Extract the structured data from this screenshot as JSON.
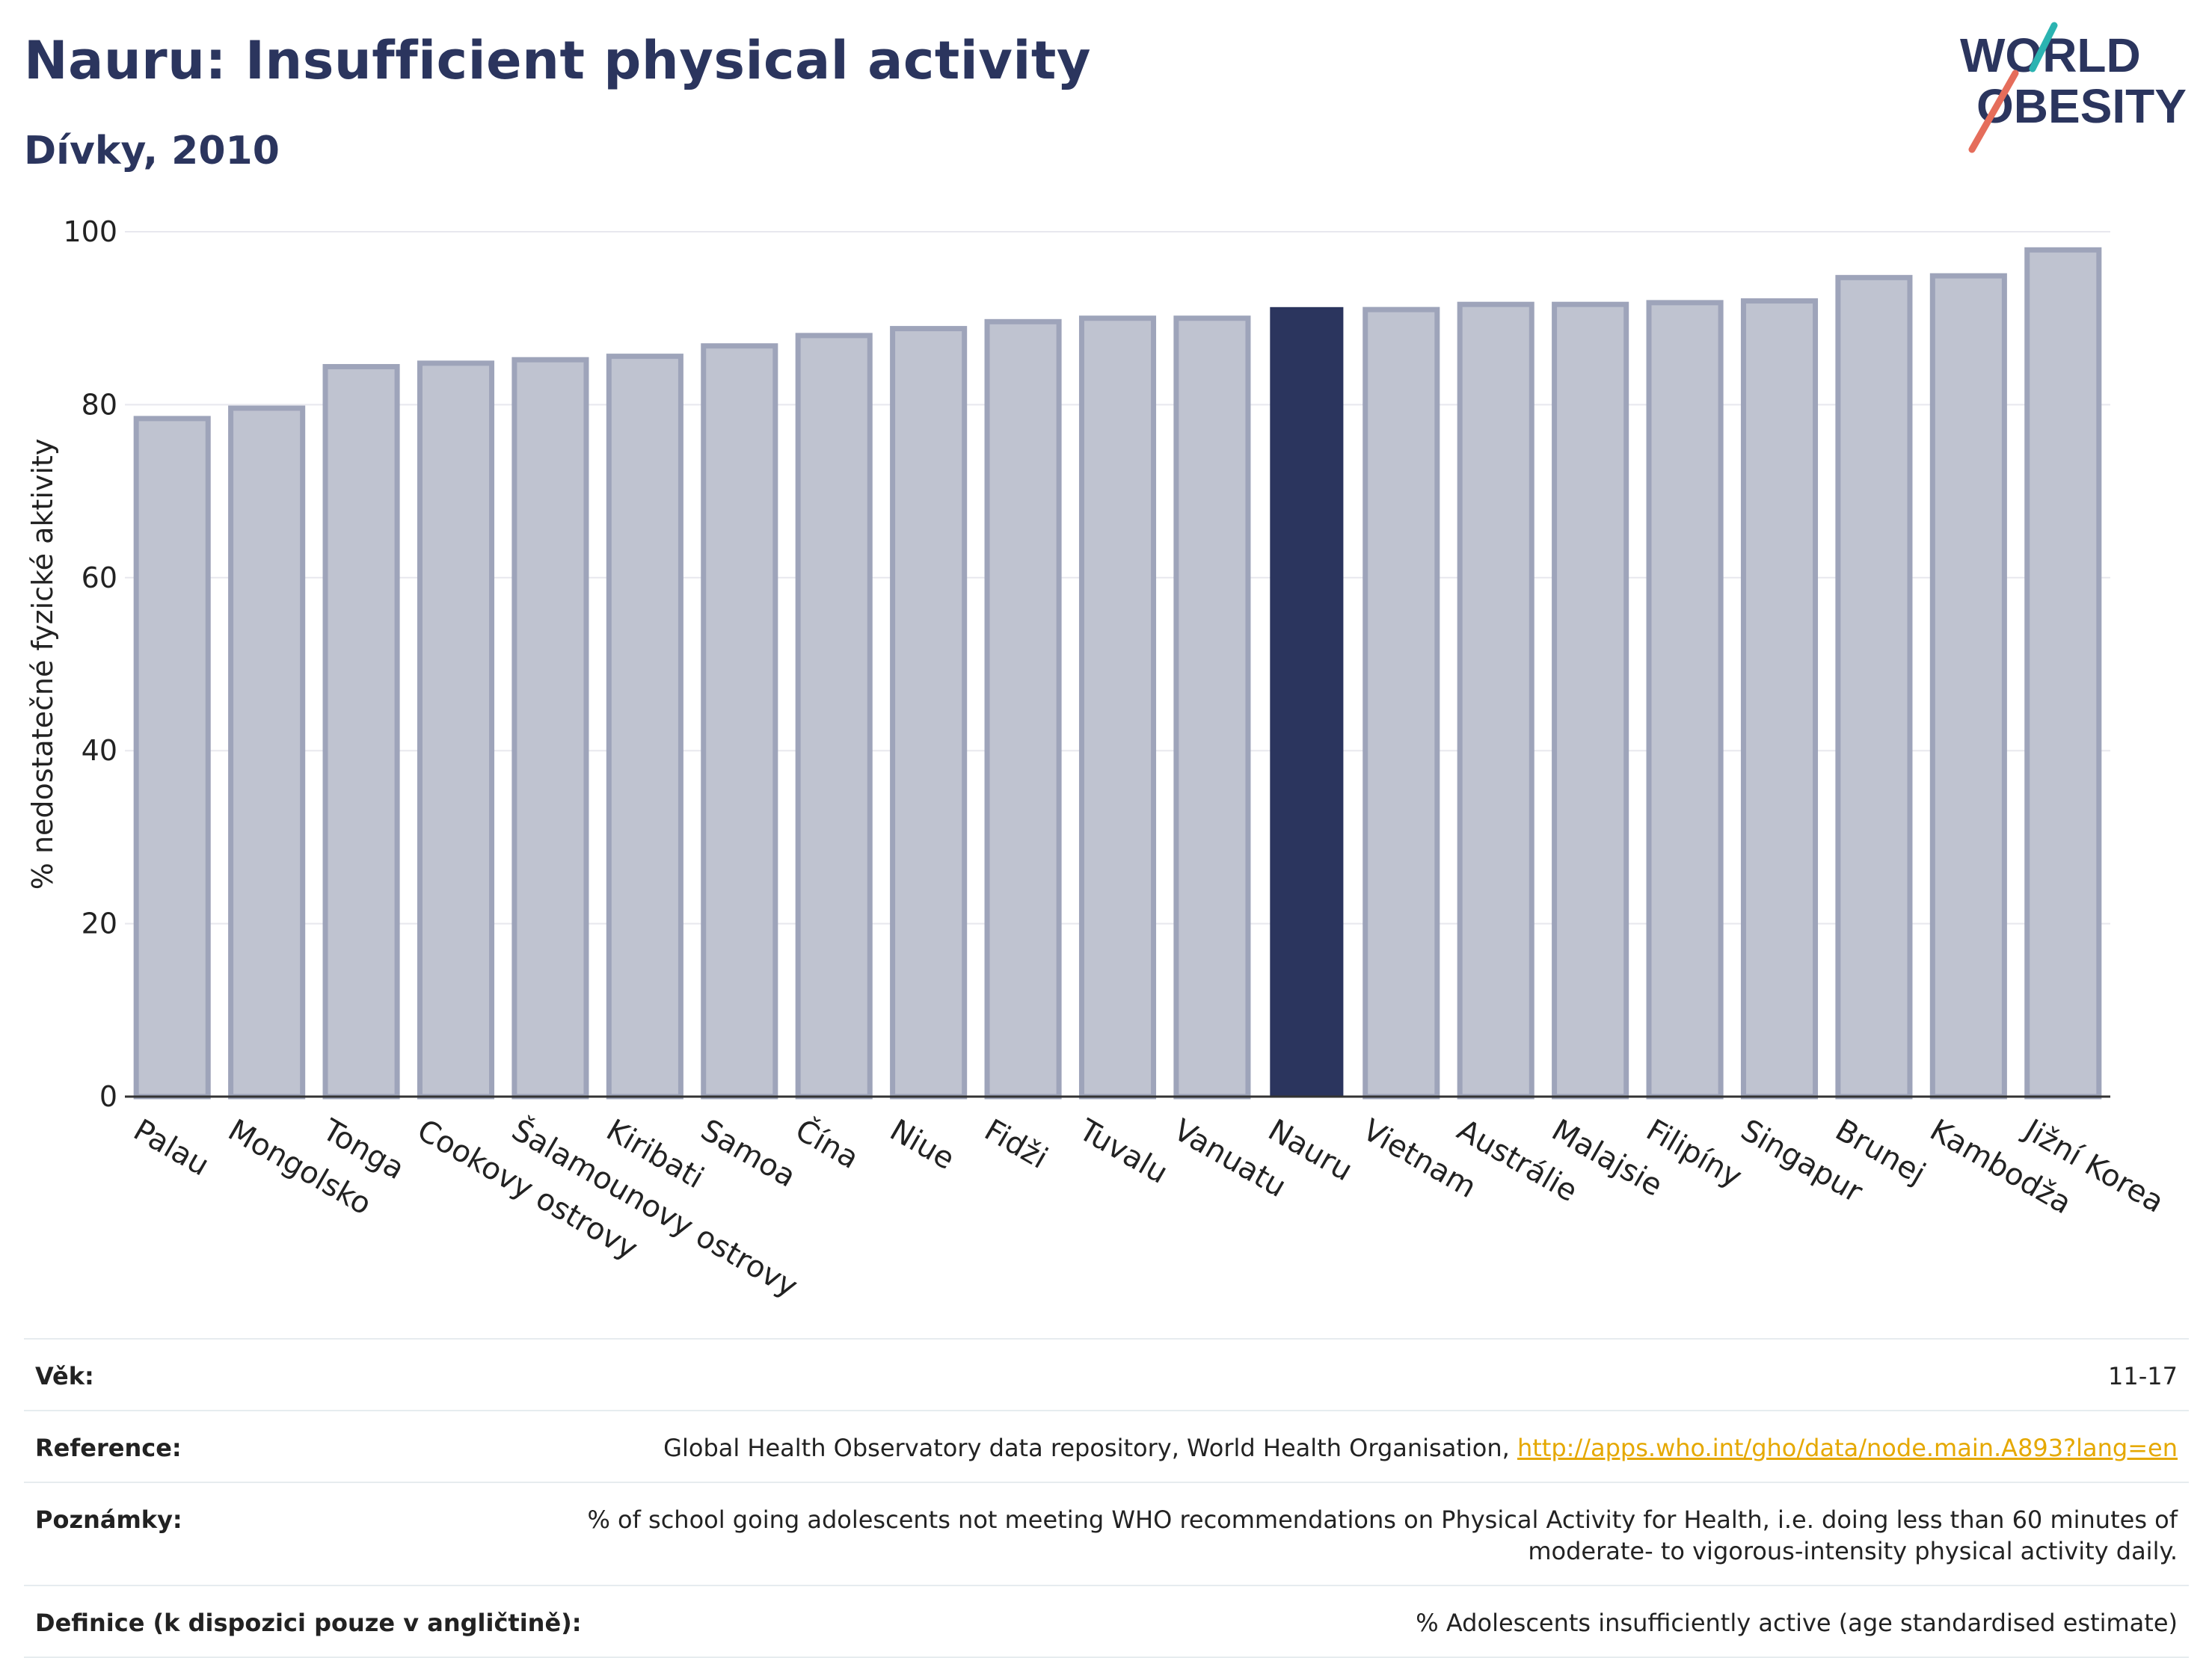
{
  "title": "Nauru: Insufficient physical activity",
  "subtitle": "Dívky, 2010",
  "logo": {
    "line1": "WORLD",
    "line2": "OBESITY"
  },
  "chart_data": {
    "type": "bar",
    "ylabel": "% nedostatečné fyzické aktivity",
    "xlabel": "",
    "ylim": [
      0,
      100
    ],
    "yticks": [
      0,
      20,
      40,
      60,
      80,
      100
    ],
    "grid": true,
    "categories": [
      "Palau",
      "Mongolsko",
      "Tonga",
      "Cookovy ostrovy",
      "Šalamounovy ostrovy",
      "Kiribati",
      "Samoa",
      "Čína",
      "Niue",
      "Fidži",
      "Tuvalu",
      "Vanuatu",
      "Nauru",
      "Vietnam",
      "Austrálie",
      "Malajsie",
      "Filipíny",
      "Singapur",
      "Brunej",
      "Kambodža",
      "Jižní Korea"
    ],
    "values": [
      78.4,
      79.6,
      84.4,
      84.8,
      85.2,
      85.6,
      86.8,
      88.0,
      88.8,
      89.6,
      90.0,
      90.0,
      91.2,
      91.0,
      91.6,
      91.6,
      91.8,
      92.0,
      94.7,
      94.9,
      97.9
    ],
    "highlight": "Nauru",
    "colors": {
      "default_fill": "#bfc3d0",
      "default_stroke": "#9ea4ba",
      "highlight_fill": "#2b355e"
    }
  },
  "info": {
    "rows": [
      {
        "label": "Věk:",
        "value": "11-17"
      },
      {
        "label": "Reference:",
        "value": "Global Health Observatory data repository, World Health Organisation, ",
        "link": "http://apps.who.int/gho/data/node.main.A893?lang=en"
      },
      {
        "label": "Poznámky:",
        "value": "% of school going adolescents not meeting WHO recommendations on Physical Activity for Health, i.e. doing less than 60 minutes of moderate- to vigorous-intensity physical activity daily."
      },
      {
        "label": "Definice (k dispozici pouze v angličtině):",
        "value": "% Adolescents insufficiently active (age standardised estimate)"
      }
    ]
  }
}
